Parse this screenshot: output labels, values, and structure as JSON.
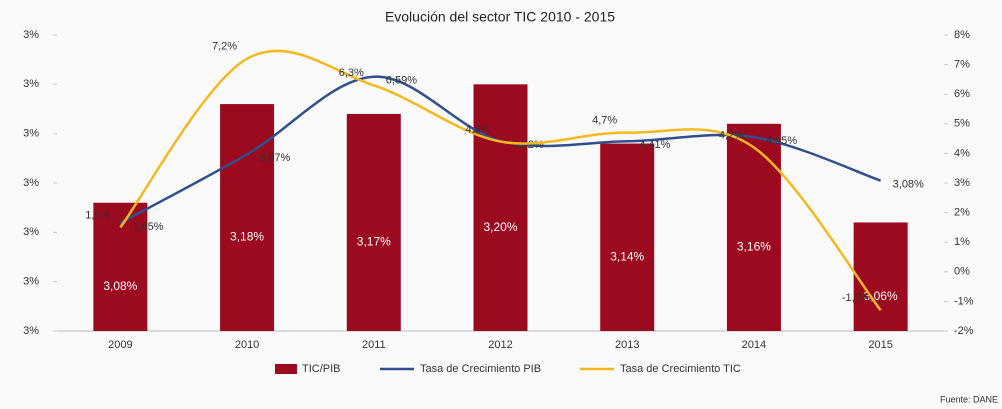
{
  "chart_data": {
    "type": "bar",
    "title": "Evolución del sector TIC 2010 - 2015",
    "categories": [
      "2009",
      "2010",
      "2011",
      "2012",
      "2013",
      "2014",
      "2015"
    ],
    "series": [
      {
        "name": "TIC/PIB",
        "type": "bar",
        "color": "#9b0a1e",
        "values": [
          3.08,
          3.18,
          3.17,
          3.2,
          3.14,
          3.16,
          3.06
        ],
        "value_labels": [
          "3,08%",
          "3,18%",
          "3,17%",
          "3,20%",
          "3,14%",
          "3,16%",
          "3,06%"
        ]
      },
      {
        "name": "Tasa de Crecimiento PIB",
        "type": "line",
        "axis": "y2",
        "color": "#2f4f8f",
        "values": [
          1.65,
          3.97,
          6.59,
          4.42,
          4.41,
          4.55,
          3.08
        ],
        "value_labels": [
          "1,65%",
          "3,97%",
          "6,59%",
          "4,42%",
          "4,41%",
          "4,55%",
          "3,08%"
        ]
      },
      {
        "name": "Tasa de Crecimiento TIC",
        "type": "line",
        "axis": "y2",
        "color": "#f5b820",
        "values": [
          1.5,
          7.2,
          6.3,
          4.4,
          4.7,
          4.2,
          -1.3
        ],
        "value_labels": [
          "1,5%",
          "7,2%",
          "6,3%",
          "4,4%",
          "4,7%",
          "4,2%",
          "-1,3%"
        ]
      }
    ],
    "ylim": [
      2.95,
      3.25
    ],
    "yticks": [
      {
        "value": 2.95,
        "label": "3%"
      },
      {
        "value": 3.0,
        "label": "3%"
      },
      {
        "value": 3.05,
        "label": "3%"
      },
      {
        "value": 3.1,
        "label": "3%"
      },
      {
        "value": 3.15,
        "label": "3%"
      },
      {
        "value": 3.2,
        "label": "3%"
      },
      {
        "value": 3.25,
        "label": "3%"
      }
    ],
    "y2lim": [
      -2,
      8
    ],
    "y2ticks": [
      {
        "value": -2,
        "label": "-2%"
      },
      {
        "value": -1,
        "label": "-1%"
      },
      {
        "value": 0,
        "label": "0%"
      },
      {
        "value": 1,
        "label": "1%"
      },
      {
        "value": 2,
        "label": "2%"
      },
      {
        "value": 3,
        "label": "3%"
      },
      {
        "value": 4,
        "label": "4%"
      },
      {
        "value": 5,
        "label": "5%"
      },
      {
        "value": 6,
        "label": "6%"
      },
      {
        "value": 7,
        "label": "7%"
      },
      {
        "value": 8,
        "label": "8%"
      }
    ],
    "legend": "bottom",
    "source": "Fuente: DANE"
  }
}
